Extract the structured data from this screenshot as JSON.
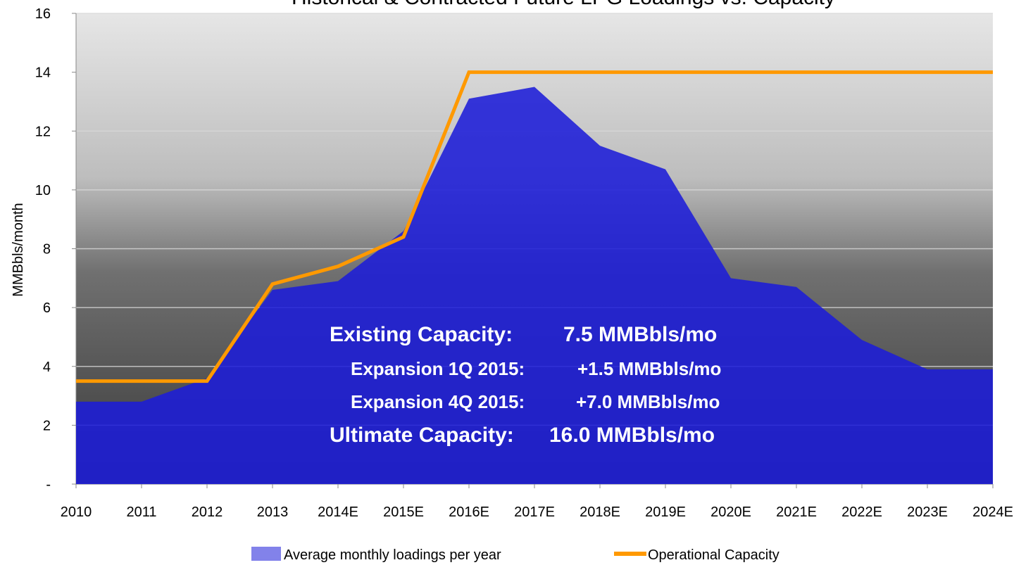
{
  "chart_data": {
    "type": "area",
    "title": "Historical & Contracted Future LPG Loadings vs. Capacity",
    "y_label": "MMBbls/month",
    "categories": [
      "2010",
      "2011",
      "2012",
      "2013",
      "2014E",
      "2015E",
      "2016E",
      "2017E",
      "2018E",
      "2019E",
      "2020E",
      "2021E",
      "2022E",
      "2023E",
      "2024E"
    ],
    "series": [
      {
        "name": "Average monthly loadings per year",
        "type": "area",
        "color": "#1c1cd8",
        "values": [
          2.8,
          2.8,
          3.6,
          6.6,
          6.9,
          8.6,
          13.1,
          13.5,
          11.5,
          10.7,
          7.0,
          6.7,
          4.9,
          3.9,
          3.9
        ]
      },
      {
        "name": "Operational Capacity",
        "type": "line",
        "color": "#ff9900",
        "values": [
          3.5,
          3.5,
          3.5,
          6.8,
          7.4,
          8.4,
          14,
          14,
          14,
          14,
          14,
          14,
          14,
          14,
          14
        ]
      }
    ],
    "ylim": [
      0,
      16
    ],
    "yticks": [
      {
        "value": 0,
        "label": "-"
      },
      2,
      4,
      6,
      8,
      10,
      12,
      14,
      16
    ],
    "grid": true,
    "legend": "bottom",
    "annotations": [
      [
        "Existing Capacity:",
        "7.5 MMBbls/mo"
      ],
      [
        "Expansion 1Q 2015:",
        "+1.5 MMBbls/mo"
      ],
      [
        "Expansion 4Q 2015:",
        "+7.0 MMBbls/mo"
      ],
      [
        "Ultimate Capacity:",
        "16.0 MMBbls/mo"
      ]
    ]
  }
}
